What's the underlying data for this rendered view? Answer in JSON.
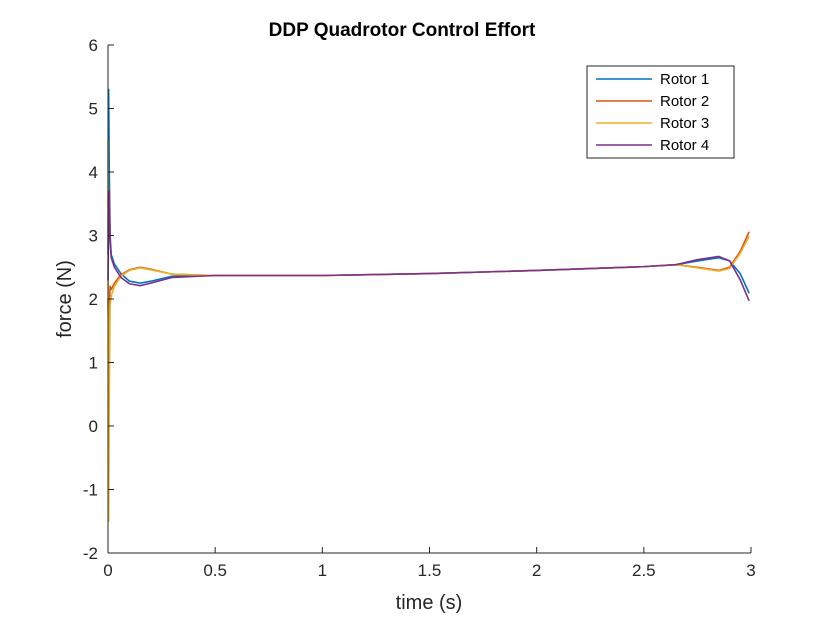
{
  "chart_data": {
    "type": "line",
    "title": "DDP Quadrotor Control Effort",
    "xlabel": "time (s)",
    "ylabel": "force (N)",
    "xlim": [
      0,
      3
    ],
    "ylim": [
      -2,
      6
    ],
    "xticks": [
      0,
      0.5,
      1,
      1.5,
      2,
      2.5,
      3
    ],
    "xtick_labels": [
      "0",
      "0.5",
      "1",
      "1.5",
      "2",
      "2.5",
      "3"
    ],
    "yticks": [
      -2,
      -1,
      0,
      1,
      2,
      3,
      4,
      5,
      6
    ],
    "ytick_labels": [
      "-2",
      "-1",
      "0",
      "1",
      "2",
      "3",
      "4",
      "5",
      "6"
    ],
    "grid": false,
    "legend_position": "top-right",
    "series": [
      {
        "name": "Rotor 1",
        "color": "#0072BD",
        "x": [
          0,
          0.003,
          0.006,
          0.01,
          0.015,
          0.03,
          0.06,
          0.1,
          0.15,
          0.2,
          0.3,
          0.5,
          1.0,
          1.5,
          2.0,
          2.5,
          2.65,
          2.75,
          2.85,
          2.9,
          2.95,
          2.99
        ],
        "y": [
          2.7,
          5.3,
          4.0,
          3.0,
          2.7,
          2.55,
          2.4,
          2.28,
          2.25,
          2.28,
          2.36,
          2.37,
          2.37,
          2.4,
          2.45,
          2.51,
          2.54,
          2.6,
          2.65,
          2.6,
          2.4,
          2.1
        ]
      },
      {
        "name": "Rotor 2",
        "color": "#D95319",
        "x": [
          0,
          0.003,
          0.006,
          0.01,
          0.015,
          0.03,
          0.06,
          0.1,
          0.15,
          0.2,
          0.3,
          0.5,
          1.0,
          1.5,
          2.0,
          2.5,
          2.65,
          2.75,
          2.85,
          2.9,
          2.95,
          2.99
        ],
        "y": [
          2.0,
          1.3,
          1.9,
          2.2,
          2.15,
          2.25,
          2.38,
          2.46,
          2.5,
          2.47,
          2.39,
          2.37,
          2.37,
          2.4,
          2.45,
          2.51,
          2.54,
          2.5,
          2.45,
          2.5,
          2.75,
          3.05
        ]
      },
      {
        "name": "Rotor 3",
        "color": "#EDB120",
        "x": [
          0,
          0.003,
          0.006,
          0.01,
          0.015,
          0.03,
          0.06,
          0.1,
          0.15,
          0.2,
          0.3,
          0.5,
          1.0,
          1.5,
          2.0,
          2.5,
          2.65,
          2.75,
          2.85,
          2.9,
          2.95,
          2.99
        ],
        "y": [
          4.5,
          -1.5,
          0.5,
          1.9,
          2.05,
          2.2,
          2.36,
          2.45,
          2.49,
          2.46,
          2.39,
          2.37,
          2.37,
          2.4,
          2.45,
          2.51,
          2.54,
          2.49,
          2.44,
          2.48,
          2.72,
          2.98
        ]
      },
      {
        "name": "Rotor 4",
        "color": "#7E2F8E",
        "x": [
          0,
          0.003,
          0.006,
          0.01,
          0.015,
          0.03,
          0.06,
          0.1,
          0.15,
          0.2,
          0.3,
          0.5,
          1.0,
          1.5,
          2.0,
          2.5,
          2.65,
          2.75,
          2.85,
          2.9,
          2.95,
          2.99
        ],
        "y": [
          2.3,
          3.2,
          3.7,
          2.9,
          2.65,
          2.5,
          2.34,
          2.24,
          2.21,
          2.25,
          2.34,
          2.37,
          2.37,
          2.4,
          2.45,
          2.51,
          2.54,
          2.62,
          2.67,
          2.6,
          2.3,
          1.98
        ]
      }
    ]
  }
}
